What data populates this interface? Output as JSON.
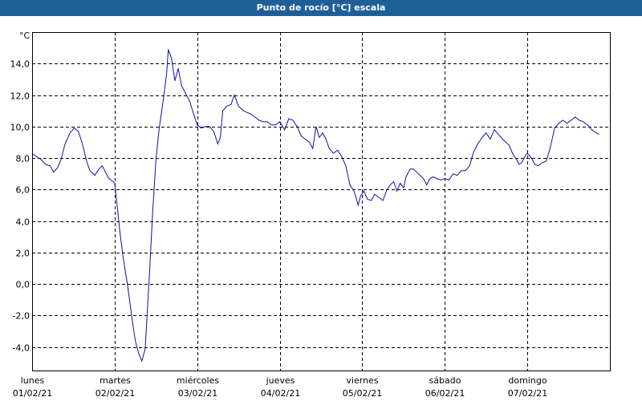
{
  "window": {
    "title": "Punto de rocío [°C] escala"
  },
  "colors": {
    "title_bar": "#1f5f97",
    "series": "#1010a0",
    "grid": "#000000"
  },
  "chart_data": {
    "type": "line",
    "title": "Punto de rocío [°C] escala",
    "ylabel": "°C",
    "ylim": [
      -5.5,
      16
    ],
    "y_ticks": [
      14,
      12,
      10,
      8,
      6,
      4,
      2,
      0,
      -2,
      -4
    ],
    "y_tick_labels": [
      "14,0",
      "12,0",
      "10,0",
      "8,0",
      "6,0",
      "4,0",
      "2,0",
      "0,0",
      "-2,0",
      "-4,0"
    ],
    "xlim": [
      0,
      7
    ],
    "x_unit": "days since 01/02/21 00:00",
    "x_ticks": [
      {
        "x": 0,
        "day": "lunes",
        "date": "01/02/21"
      },
      {
        "x": 1,
        "day": "martes",
        "date": "02/02/21"
      },
      {
        "x": 2,
        "day": "miércoles",
        "date": "03/02/21"
      },
      {
        "x": 3,
        "day": "jueves",
        "date": "04/02/21"
      },
      {
        "x": 4,
        "day": "viernes",
        "date": "05/02/21"
      },
      {
        "x": 5,
        "day": "sábado",
        "date": "06/02/21"
      },
      {
        "x": 6,
        "day": "domingo",
        "date": "07/02/21"
      }
    ],
    "grid": true,
    "series": [
      {
        "points": [
          [
            0.0,
            8.3
          ],
          [
            0.05,
            8.1
          ],
          [
            0.11,
            7.9
          ],
          [
            0.16,
            7.6
          ],
          [
            0.22,
            7.5
          ],
          [
            0.26,
            7.1
          ],
          [
            0.31,
            7.4
          ],
          [
            0.35,
            7.9
          ],
          [
            0.4,
            8.9
          ],
          [
            0.46,
            9.6
          ],
          [
            0.51,
            9.9
          ],
          [
            0.56,
            9.7
          ],
          [
            0.61,
            8.9
          ],
          [
            0.66,
            7.8
          ],
          [
            0.7,
            7.2
          ],
          [
            0.76,
            6.9
          ],
          [
            0.81,
            7.3
          ],
          [
            0.85,
            7.5
          ],
          [
            0.89,
            7.1
          ],
          [
            0.93,
            6.7
          ],
          [
            0.98,
            6.5
          ],
          [
            1.0,
            6.4
          ],
          [
            1.03,
            5.0
          ],
          [
            1.06,
            3.5
          ],
          [
            1.1,
            1.8
          ],
          [
            1.16,
            -0.2
          ],
          [
            1.21,
            -2.2
          ],
          [
            1.25,
            -3.6
          ],
          [
            1.29,
            -4.4
          ],
          [
            1.33,
            -4.9
          ],
          [
            1.37,
            -4.1
          ],
          [
            1.42,
            0.5
          ],
          [
            1.46,
            4.5
          ],
          [
            1.5,
            7.9
          ],
          [
            1.54,
            9.9
          ],
          [
            1.59,
            11.7
          ],
          [
            1.63,
            13.4
          ],
          [
            1.65,
            14.9
          ],
          [
            1.69,
            14.3
          ],
          [
            1.73,
            12.9
          ],
          [
            1.77,
            13.7
          ],
          [
            1.81,
            12.6
          ],
          [
            1.86,
            12.1
          ],
          [
            1.91,
            11.6
          ],
          [
            1.95,
            10.9
          ],
          [
            2.0,
            10.1
          ],
          [
            2.05,
            9.9
          ],
          [
            2.1,
            10.0
          ],
          [
            2.15,
            10.0
          ],
          [
            2.2,
            9.7
          ],
          [
            2.25,
            8.9
          ],
          [
            2.28,
            9.3
          ],
          [
            2.31,
            11.0
          ],
          [
            2.36,
            11.3
          ],
          [
            2.41,
            11.4
          ],
          [
            2.45,
            12.0
          ],
          [
            2.5,
            11.3
          ],
          [
            2.56,
            11.0
          ],
          [
            2.6,
            10.9
          ],
          [
            2.65,
            10.8
          ],
          [
            2.7,
            10.6
          ],
          [
            2.75,
            10.4
          ],
          [
            2.8,
            10.3
          ],
          [
            2.85,
            10.3
          ],
          [
            2.9,
            10.1
          ],
          [
            2.95,
            10.1
          ],
          [
            3.0,
            10.3
          ],
          [
            3.06,
            9.8
          ],
          [
            3.11,
            10.5
          ],
          [
            3.16,
            10.4
          ],
          [
            3.21,
            10.0
          ],
          [
            3.26,
            9.4
          ],
          [
            3.31,
            9.2
          ],
          [
            3.36,
            9.0
          ],
          [
            3.4,
            8.6
          ],
          [
            3.44,
            10.0
          ],
          [
            3.48,
            9.3
          ],
          [
            3.52,
            9.6
          ],
          [
            3.56,
            9.2
          ],
          [
            3.6,
            8.6
          ],
          [
            3.65,
            8.3
          ],
          [
            3.7,
            8.5
          ],
          [
            3.75,
            8.1
          ],
          [
            3.8,
            7.5
          ],
          [
            3.85,
            6.3
          ],
          [
            3.9,
            5.9
          ],
          [
            3.93,
            5.4
          ],
          [
            3.95,
            5.0
          ],
          [
            3.98,
            5.6
          ],
          [
            4.02,
            5.9
          ],
          [
            4.06,
            5.4
          ],
          [
            4.11,
            5.3
          ],
          [
            4.15,
            5.7
          ],
          [
            4.2,
            5.5
          ],
          [
            4.25,
            5.3
          ],
          [
            4.3,
            6.0
          ],
          [
            4.34,
            6.3
          ],
          [
            4.38,
            6.5
          ],
          [
            4.42,
            5.9
          ],
          [
            4.46,
            6.4
          ],
          [
            4.5,
            6.1
          ],
          [
            4.53,
            6.8
          ],
          [
            4.58,
            7.3
          ],
          [
            4.62,
            7.3
          ],
          [
            4.66,
            7.1
          ],
          [
            4.7,
            6.9
          ],
          [
            4.74,
            6.7
          ],
          [
            4.78,
            6.3
          ],
          [
            4.82,
            6.7
          ],
          [
            4.86,
            6.8
          ],
          [
            4.9,
            6.7
          ],
          [
            4.95,
            6.6
          ],
          [
            5.0,
            6.7
          ],
          [
            5.05,
            6.6
          ],
          [
            5.1,
            7.0
          ],
          [
            5.15,
            6.9
          ],
          [
            5.2,
            7.2
          ],
          [
            5.25,
            7.2
          ],
          [
            5.3,
            7.5
          ],
          [
            5.35,
            8.4
          ],
          [
            5.4,
            8.9
          ],
          [
            5.45,
            9.3
          ],
          [
            5.5,
            9.6
          ],
          [
            5.55,
            9.2
          ],
          [
            5.6,
            9.8
          ],
          [
            5.65,
            9.5
          ],
          [
            5.7,
            9.2
          ],
          [
            5.74,
            9.0
          ],
          [
            5.78,
            8.8
          ],
          [
            5.82,
            8.3
          ],
          [
            5.87,
            7.9
          ],
          [
            5.9,
            7.6
          ],
          [
            5.93,
            7.7
          ],
          [
            5.97,
            8.1
          ],
          [
            6.0,
            8.3
          ],
          [
            6.05,
            8.0
          ],
          [
            6.09,
            7.6
          ],
          [
            6.13,
            7.5
          ],
          [
            6.18,
            7.7
          ],
          [
            6.23,
            7.8
          ],
          [
            6.28,
            8.7
          ],
          [
            6.33,
            9.9
          ],
          [
            6.38,
            10.2
          ],
          [
            6.43,
            10.4
          ],
          [
            6.48,
            10.2
          ],
          [
            6.53,
            10.4
          ],
          [
            6.58,
            10.6
          ],
          [
            6.63,
            10.4
          ],
          [
            6.68,
            10.3
          ],
          [
            6.73,
            10.1
          ],
          [
            6.78,
            9.8
          ],
          [
            6.83,
            9.6
          ],
          [
            6.87,
            9.5
          ]
        ]
      }
    ]
  }
}
